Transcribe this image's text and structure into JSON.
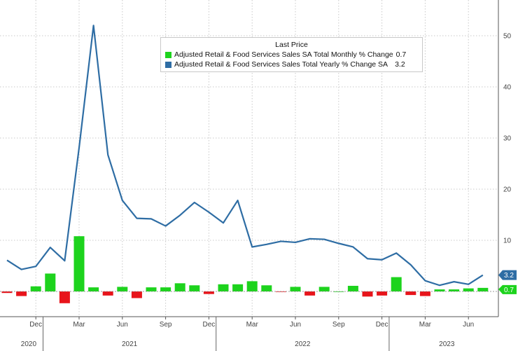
{
  "chart_data": {
    "type": "bar+line",
    "legend": {
      "title": "Last Price",
      "placement": "top-center"
    },
    "months": [
      "2020-10",
      "2020-11",
      "2020-12",
      "2021-01",
      "2021-02",
      "2021-03",
      "2021-04",
      "2021-05",
      "2021-06",
      "2021-07",
      "2021-08",
      "2021-09",
      "2021-10",
      "2021-11",
      "2021-12",
      "2022-01",
      "2022-02",
      "2022-03",
      "2022-04",
      "2022-05",
      "2022-06",
      "2022-07",
      "2022-08",
      "2022-09",
      "2022-10",
      "2022-11",
      "2022-12",
      "2023-01",
      "2023-02",
      "2023-03",
      "2023-04",
      "2023-05",
      "2023-06",
      "2023-07"
    ],
    "series": [
      {
        "name": "Adjusted Retail & Food Services Sales SA Total Monthly % Change",
        "last": "0.7",
        "kind": "bar",
        "color_pos": "#1dd31d",
        "color_neg": "#e8141b",
        "values": [
          -0.3,
          -0.9,
          1.0,
          3.5,
          -2.3,
          10.8,
          0.8,
          -0.8,
          0.9,
          -1.3,
          0.8,
          0.8,
          1.6,
          1.2,
          -0.5,
          1.4,
          1.4,
          2.0,
          1.2,
          -0.1,
          0.9,
          -0.8,
          0.9,
          0.0,
          1.1,
          -1.0,
          -0.8,
          2.8,
          -0.7,
          -0.9,
          0.4,
          0.4,
          0.6,
          0.7
        ]
      },
      {
        "name": "Adjusted Retail & Food Services Sales Total Yearly % Change SA",
        "last": "3.2",
        "kind": "line",
        "color": "#2e6da4",
        "values": [
          6.1,
          4.3,
          4.9,
          8.6,
          6.0,
          28.1,
          52.0,
          26.7,
          17.8,
          14.3,
          14.2,
          12.8,
          14.9,
          17.4,
          15.5,
          13.4,
          17.8,
          8.7,
          9.2,
          9.8,
          9.6,
          10.3,
          10.2,
          9.4,
          8.7,
          6.4,
          6.2,
          7.5,
          5.2,
          2.1,
          1.2,
          1.9,
          1.4,
          3.2
        ]
      }
    ],
    "yaxis": {
      "range": [
        -3.5,
        57
      ],
      "ticks": [
        0,
        10,
        20,
        30,
        40,
        50
      ],
      "position": "right"
    },
    "month_ticks": [
      {
        "index": 2,
        "label": "Dec"
      },
      {
        "index": 5,
        "label": "Mar"
      },
      {
        "index": 8,
        "label": "Jun"
      },
      {
        "index": 11,
        "label": "Sep"
      },
      {
        "index": 14,
        "label": "Dec"
      },
      {
        "index": 17,
        "label": "Mar"
      },
      {
        "index": 20,
        "label": "Jun"
      },
      {
        "index": 23,
        "label": "Sep"
      },
      {
        "index": 26,
        "label": "Dec"
      },
      {
        "index": 29,
        "label": "Mar"
      },
      {
        "index": 32,
        "label": "Jun"
      }
    ],
    "year_labels": [
      {
        "center_index": 1.5,
        "label": "2020"
      },
      {
        "center_index": 8.5,
        "label": "2021"
      },
      {
        "center_index": 20.5,
        "label": "2022"
      },
      {
        "center_index": 30.5,
        "label": "2023"
      }
    ],
    "year_boundaries": [
      2.5,
      14.5,
      26.5
    ],
    "grid": true
  }
}
